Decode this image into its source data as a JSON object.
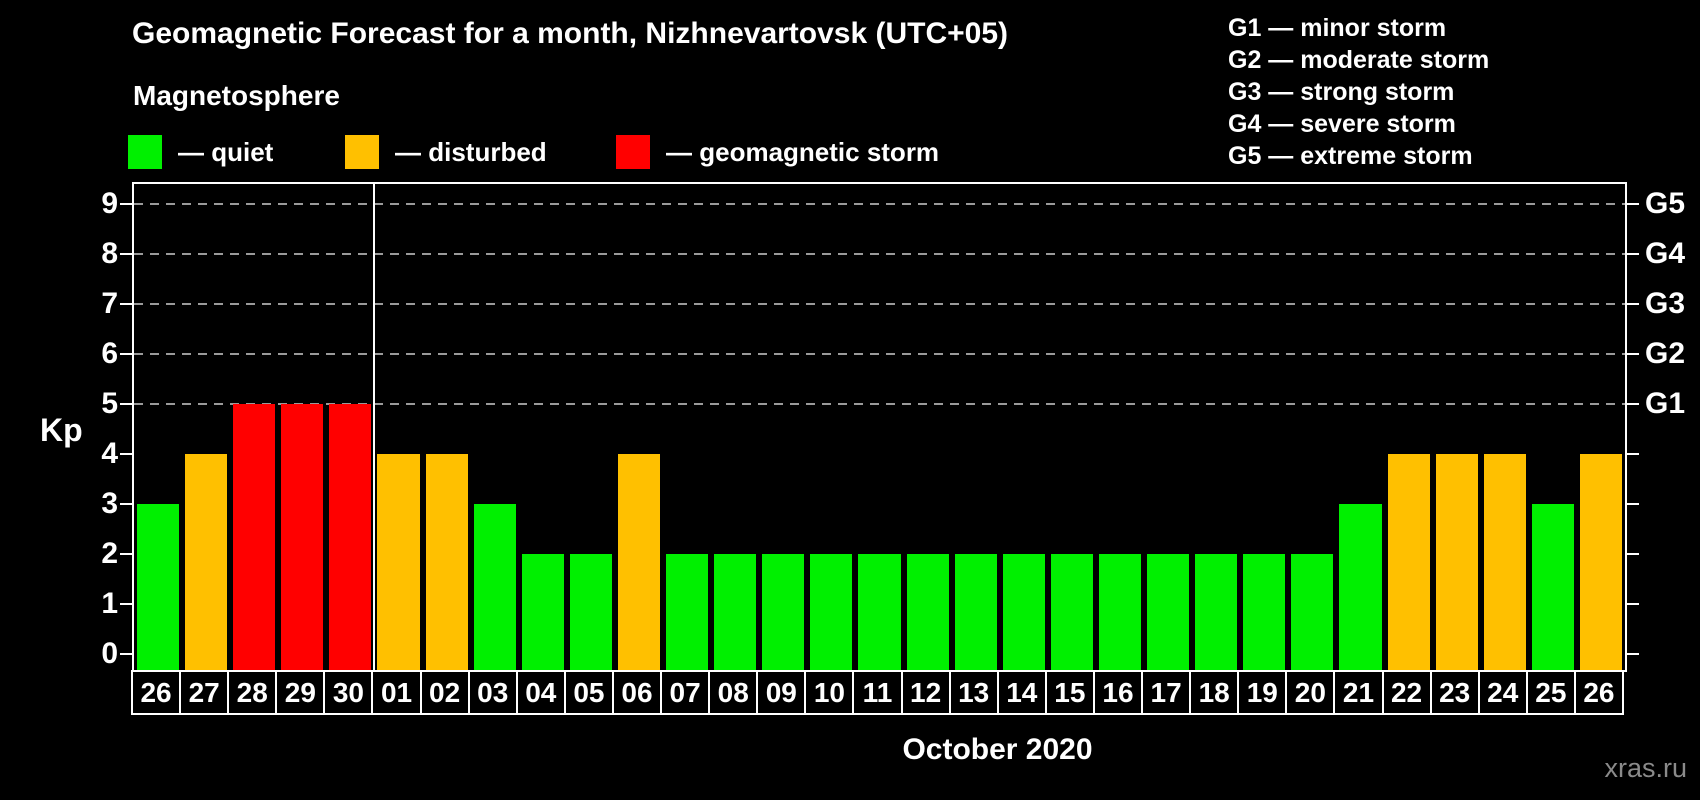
{
  "title": "Geomagnetic Forecast for a month, Nizhnevartovsk (UTC+05)",
  "subtitle": "Magnetosphere",
  "legend": {
    "items": [
      {
        "name": "quiet",
        "label": "— quiet",
        "color": "#00f000"
      },
      {
        "name": "disturbed",
        "label": "— disturbed",
        "color": "#ffc000"
      },
      {
        "name": "storm",
        "label": "— geomagnetic storm",
        "color": "#ff0000"
      }
    ]
  },
  "g_legend": [
    "G1 — minor storm",
    "G2 — moderate storm",
    "G3 — strong storm",
    "G4 — severe storm",
    "G5 — extreme storm"
  ],
  "axis": {
    "y_label": "Kp",
    "month_label": "October 2020"
  },
  "watermark": "xras.ru",
  "chart_data": {
    "type": "bar",
    "title": "Geomagnetic Forecast for a month, Nizhnevartovsk (UTC+05)",
    "subtitle": "Magnetosphere",
    "ylabel": "Kp",
    "xlabel": "October 2020",
    "ylim": [
      0,
      9
    ],
    "y_ticks": [
      0,
      1,
      2,
      3,
      4,
      5,
      6,
      7,
      8,
      9
    ],
    "grid_kp": [
      5,
      6,
      7,
      8,
      9
    ],
    "grid_style": "dashed horizontal gray lines at Kp 5-9",
    "g_scale": [
      {
        "kp": 5,
        "label": "G1"
      },
      {
        "kp": 6,
        "label": "G2"
      },
      {
        "kp": 7,
        "label": "G3"
      },
      {
        "kp": 8,
        "label": "G4"
      },
      {
        "kp": 9,
        "label": "G5"
      }
    ],
    "categories": [
      "26",
      "27",
      "28",
      "29",
      "30",
      "01",
      "02",
      "03",
      "04",
      "05",
      "06",
      "07",
      "08",
      "09",
      "10",
      "11",
      "12",
      "13",
      "14",
      "15",
      "16",
      "17",
      "18",
      "19",
      "20",
      "21",
      "22",
      "23",
      "24",
      "25",
      "26"
    ],
    "values": [
      3,
      4,
      5,
      5,
      5,
      4,
      4,
      3,
      2,
      2,
      4,
      2,
      2,
      2,
      2,
      2,
      2,
      2,
      2,
      2,
      2,
      2,
      2,
      2,
      2,
      3,
      4,
      4,
      4,
      3,
      4
    ],
    "levels": [
      "quiet",
      "disturbed",
      "storm",
      "storm",
      "storm",
      "disturbed",
      "disturbed",
      "quiet",
      "quiet",
      "quiet",
      "disturbed",
      "quiet",
      "quiet",
      "quiet",
      "quiet",
      "quiet",
      "quiet",
      "quiet",
      "quiet",
      "quiet",
      "quiet",
      "quiet",
      "quiet",
      "quiet",
      "quiet",
      "quiet",
      "disturbed",
      "disturbed",
      "disturbed",
      "quiet",
      "disturbed"
    ],
    "level_colors": {
      "quiet": "#00f000",
      "disturbed": "#ffc000",
      "storm": "#ff0000"
    },
    "month_separator_after_index": 4,
    "legend_position": "top-left",
    "notes": "First 5 bars are September dates (26-30), separator line marks start of October"
  }
}
